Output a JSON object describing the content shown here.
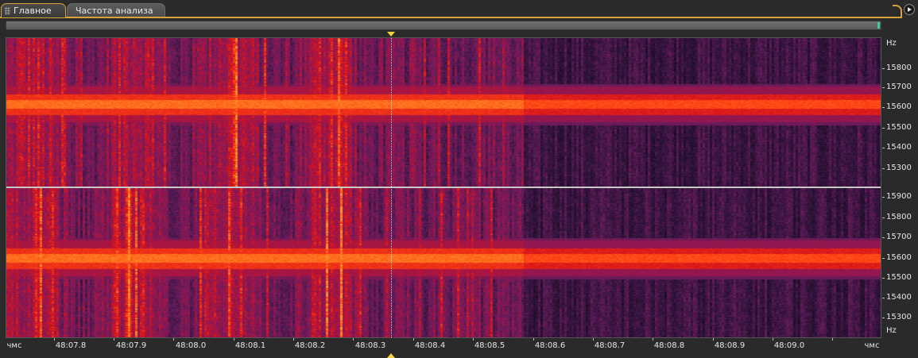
{
  "tabs": [
    {
      "label": "Главное",
      "active": true
    },
    {
      "label": "Частота анализа",
      "active": false
    }
  ],
  "spectrogram": {
    "colors": {
      "background": "#1a0f26",
      "low": "#3b1842",
      "mid": "#7a1f5a",
      "high": "#d8151c",
      "peak": "#ff7a1a",
      "accent": "#d9a13a",
      "playhead": "#f2d23a"
    },
    "channels": [
      {
        "name": "top",
        "labels": [
          "Hz",
          "15800",
          "15700",
          "15600",
          "15500",
          "15400",
          "15300"
        ]
      },
      {
        "name": "bottom",
        "labels": [
          "15900",
          "15800",
          "15700",
          "15600",
          "15500",
          "15400",
          "15300",
          "Hz"
        ]
      }
    ],
    "time_axis": {
      "unit": "чмс",
      "labels": [
        "48:07.8",
        "48:07.9",
        "48:08.0",
        "48:08.1",
        "48:08.2",
        "48:08.3",
        "48:08.4",
        "48:08.5",
        "48:08.6",
        "48:08.7",
        "48:08.8",
        "48:08.9",
        "48:09.0"
      ],
      "start_label": "чмс",
      "end_label": "чмс"
    }
  },
  "icons": {
    "play": "play-icon",
    "grip": "grip-icon"
  }
}
